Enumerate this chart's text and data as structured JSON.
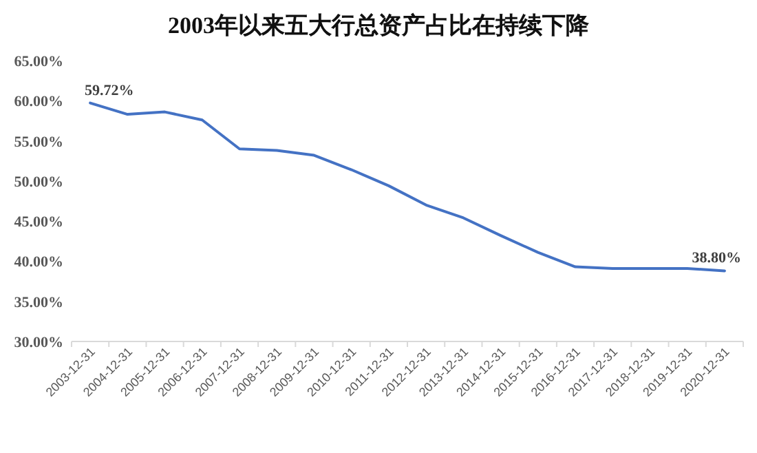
{
  "chart_data": {
    "type": "line",
    "title": "2003年以来五大行总资产占比在持续下降",
    "categories": [
      "2003-12-31",
      "2004-12-31",
      "2005-12-31",
      "2006-12-31",
      "2007-12-31",
      "2008-12-31",
      "2009-12-31",
      "2010-12-31",
      "2011-12-31",
      "2012-12-31",
      "2013-12-31",
      "2014-12-31",
      "2015-12-31",
      "2016-12-31",
      "2017-12-31",
      "2018-12-31",
      "2019-12-31",
      "2020-12-31"
    ],
    "series": [
      {
        "color": "#4472c4",
        "values": [
          59.72,
          58.3,
          58.6,
          57.6,
          54.0,
          53.8,
          53.2,
          51.4,
          49.4,
          47.0,
          45.4,
          43.2,
          41.1,
          39.3,
          39.1,
          39.1,
          39.1,
          38.8
        ],
        "value_labels": [
          "59.72%",
          null,
          null,
          null,
          null,
          null,
          null,
          null,
          null,
          null,
          null,
          null,
          null,
          null,
          null,
          null,
          null,
          "38.80%"
        ]
      }
    ],
    "ylim": [
      30,
      65
    ],
    "yticks": [
      {
        "value": 30,
        "label": "30.00%"
      },
      {
        "value": 35,
        "label": "35.00%"
      },
      {
        "value": 40,
        "label": "40.00%"
      },
      {
        "value": 45,
        "label": "45.00%"
      },
      {
        "value": 50,
        "label": "50.00%"
      },
      {
        "value": 55,
        "label": "55.00%"
      },
      {
        "value": 60,
        "label": "60.00%"
      },
      {
        "value": 65,
        "label": "65.00%"
      }
    ],
    "grid": false,
    "marker": "none",
    "line_style": "solid"
  }
}
